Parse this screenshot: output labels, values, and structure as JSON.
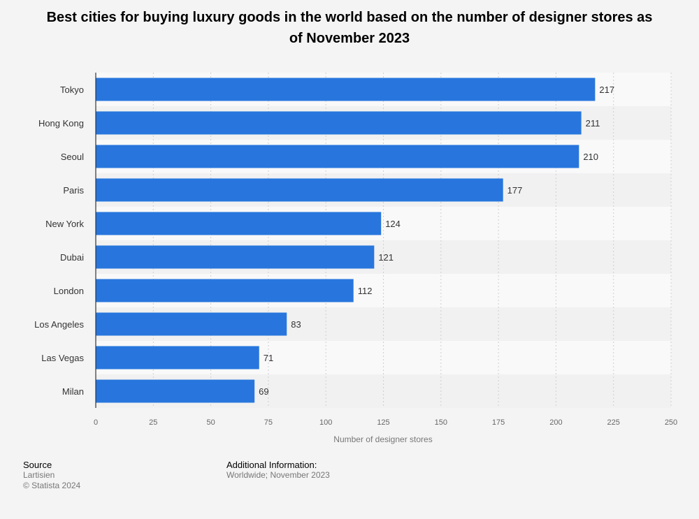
{
  "chart_data": {
    "type": "bar",
    "orientation": "horizontal",
    "title": "Best cities for buying luxury goods in the world based on the number of designer stores as of November 2023",
    "categories": [
      "Tokyo",
      "Hong Kong",
      "Seoul",
      "Paris",
      "New York",
      "Dubai",
      "London",
      "Los Angeles",
      "Las Vegas",
      "Milan"
    ],
    "values": [
      217,
      211,
      210,
      177,
      124,
      121,
      112,
      83,
      71,
      69
    ],
    "xlabel": "Number of designer stores",
    "ylabel": "",
    "xlim": [
      0,
      250
    ],
    "xticks": [
      0,
      25,
      50,
      75,
      100,
      125,
      150,
      175,
      200,
      225,
      250
    ],
    "grid": true,
    "bar_color": "#2876dd",
    "data_labels": true
  },
  "footer": {
    "source_label": "Source",
    "source_name": "Lartisien",
    "copyright": "© Statista 2024",
    "info_label": "Additional Information:",
    "info_text": "Worldwide; November 2023"
  }
}
